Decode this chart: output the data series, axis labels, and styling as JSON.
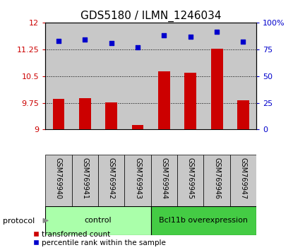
{
  "title": "GDS5180 / ILMN_1246034",
  "samples": [
    "GSM769940",
    "GSM769941",
    "GSM769942",
    "GSM769943",
    "GSM769944",
    "GSM769945",
    "GSM769946",
    "GSM769947"
  ],
  "transformed_count": [
    9.85,
    9.87,
    9.76,
    9.12,
    10.63,
    10.6,
    11.27,
    9.82
  ],
  "percentile_rank": [
    83,
    84,
    81,
    77,
    88,
    87,
    91,
    82
  ],
  "ylim_left": [
    9,
    12
  ],
  "ylim_right": [
    0,
    100
  ],
  "yticks_left": [
    9,
    9.75,
    10.5,
    11.25,
    12
  ],
  "yticks_right": [
    0,
    25,
    50,
    75,
    100
  ],
  "bar_color": "#cc0000",
  "dot_color": "#0000cc",
  "bar_width": 0.45,
  "groups": [
    {
      "label": "control",
      "indices": [
        0,
        1,
        2,
        3
      ],
      "color": "#aaffaa"
    },
    {
      "label": "Bcl11b overexpression",
      "indices": [
        4,
        5,
        6,
        7
      ],
      "color": "#44cc44"
    }
  ],
  "protocol_label": "protocol",
  "legend_bar_label": "transformed count",
  "legend_dot_label": "percentile rank within the sample",
  "title_fontsize": 11,
  "tick_fontsize": 8,
  "background_sample": "#c8c8c8",
  "sample_label_fontsize": 7,
  "group_label_fontsize": 8
}
